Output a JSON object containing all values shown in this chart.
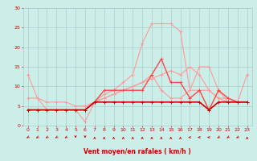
{
  "xlabel": "Vent moyen/en rafales ( km/h )",
  "x": [
    0,
    1,
    2,
    3,
    4,
    5,
    6,
    7,
    8,
    9,
    10,
    11,
    12,
    13,
    14,
    15,
    16,
    17,
    18,
    19,
    20,
    21,
    22,
    23
  ],
  "series": [
    {
      "color": "#ff9999",
      "linewidth": 0.8,
      "marker": "+",
      "markersize": 3,
      "values": [
        13,
        7,
        4,
        4,
        4,
        4,
        4,
        6,
        8,
        9,
        11,
        13,
        21,
        26,
        26,
        26,
        24,
        9,
        15,
        15,
        9,
        6,
        6,
        13
      ]
    },
    {
      "color": "#ff9999",
      "linewidth": 0.8,
      "marker": "+",
      "markersize": 3,
      "values": [
        4,
        4,
        4,
        4,
        4,
        4,
        1,
        6,
        7,
        8,
        9,
        10,
        11,
        13,
        9,
        7,
        7,
        9,
        9,
        9,
        7,
        7,
        6,
        6
      ]
    },
    {
      "color": "#ff9999",
      "linewidth": 0.8,
      "marker": "+",
      "markersize": 3,
      "values": [
        7,
        7,
        6,
        6,
        6,
        5,
        5,
        6,
        7,
        8,
        9,
        10,
        11,
        12,
        13,
        14,
        13,
        15,
        13,
        9,
        7,
        6,
        6,
        6
      ]
    },
    {
      "color": "#ff4444",
      "linewidth": 1.0,
      "marker": "+",
      "markersize": 3,
      "values": [
        4,
        4,
        4,
        4,
        4,
        4,
        4,
        6,
        9,
        9,
        9,
        9,
        9,
        13,
        17,
        11,
        11,
        7,
        9,
        4,
        9,
        7,
        6,
        6
      ]
    },
    {
      "color": "#cc0000",
      "linewidth": 1.2,
      "marker": "+",
      "markersize": 3,
      "values": [
        4,
        4,
        4,
        4,
        4,
        4,
        4,
        6,
        6,
        6,
        6,
        6,
        6,
        6,
        6,
        6,
        6,
        6,
        6,
        4,
        6,
        6,
        6,
        6
      ]
    }
  ],
  "ylim": [
    0,
    30
  ],
  "yticks": [
    0,
    5,
    10,
    15,
    20,
    25,
    30
  ],
  "xlim": [
    -0.5,
    23.5
  ],
  "xticks": [
    0,
    1,
    2,
    3,
    4,
    5,
    6,
    7,
    8,
    9,
    10,
    11,
    12,
    13,
    14,
    15,
    16,
    17,
    18,
    19,
    20,
    21,
    22,
    23
  ],
  "bg_color": "#cceee8",
  "grid_color": "#aacccc",
  "text_color": "#cc0000",
  "arrow_color": "#cc0000",
  "wind_x": [
    0,
    1,
    2,
    3,
    4,
    5,
    6,
    7,
    8,
    9,
    10,
    11,
    12,
    13,
    14,
    15,
    16,
    17,
    18,
    19,
    20,
    21,
    22,
    23
  ],
  "wind_angles_deg": [
    225,
    225,
    225,
    225,
    225,
    270,
    270,
    90,
    90,
    90,
    90,
    90,
    90,
    90,
    90,
    90,
    90,
    180,
    180,
    180,
    225,
    225,
    225,
    90
  ]
}
